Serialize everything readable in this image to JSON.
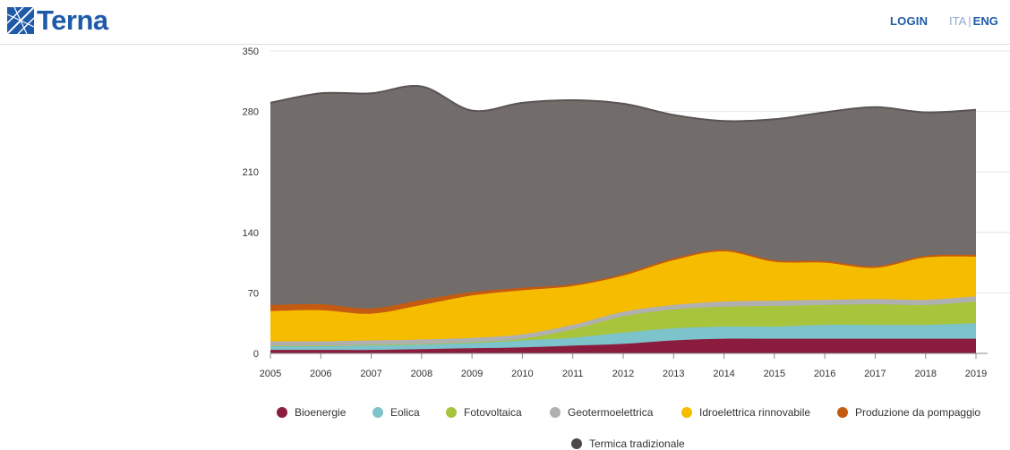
{
  "header": {
    "logo_text": "Terna",
    "login_label": "LOGIN",
    "lang_ita": "ITA",
    "lang_sep": "|",
    "lang_eng": "ENG",
    "brand_color": "#1e5aa8"
  },
  "chart_data": {
    "type": "area",
    "stacked": true,
    "x": [
      "2005",
      "2006",
      "2007",
      "2008",
      "2009",
      "2010",
      "2011",
      "2012",
      "2013",
      "2014",
      "2015",
      "2016",
      "2017",
      "2018",
      "2019"
    ],
    "ylim": [
      0,
      350
    ],
    "yticks": [
      0,
      70,
      140,
      210,
      280,
      350
    ],
    "grid": true,
    "legend_position": "bottom",
    "series": [
      {
        "name": "Bioenergie",
        "color": "#8b1c3d",
        "values": [
          4,
          4,
          4,
          5,
          6,
          7,
          9,
          11,
          15,
          17,
          17,
          17,
          17,
          17,
          17
        ]
      },
      {
        "name": "Eolica",
        "color": "#7dc3cc",
        "values": [
          5,
          5,
          6,
          6,
          6,
          8,
          9,
          13,
          14,
          14,
          14,
          16,
          16,
          16,
          18
        ]
      },
      {
        "name": "Fotovoltaica",
        "color": "#a7c43c",
        "values": [
          0,
          0,
          0,
          0,
          1,
          2,
          10,
          19,
          22,
          23,
          24,
          23,
          24,
          23,
          25
        ]
      },
      {
        "name": "Geotermoelettrica",
        "color": "#b0b0b0",
        "values": [
          5,
          5,
          5,
          5,
          5,
          5,
          5,
          5,
          5,
          6,
          6,
          6,
          6,
          6,
          6
        ]
      },
      {
        "name": "Idroelettrica rinnovabile",
        "color": "#f6bc00",
        "values": [
          35,
          36,
          31,
          40,
          49,
          51,
          45,
          42,
          52,
          58,
          45,
          43,
          36,
          49,
          46
        ]
      },
      {
        "name": "Produzione da pompaggio",
        "color": "#c55a11",
        "values": [
          7,
          7,
          6,
          6,
          4,
          3,
          2,
          2,
          2,
          2,
          2,
          2,
          2,
          2,
          2
        ]
      },
      {
        "name": "Termica tradizionale",
        "color": "#726c6b",
        "values": [
          234,
          244,
          249,
          247,
          210,
          214,
          213,
          197,
          166,
          149,
          163,
          172,
          184,
          166,
          168
        ]
      }
    ]
  }
}
